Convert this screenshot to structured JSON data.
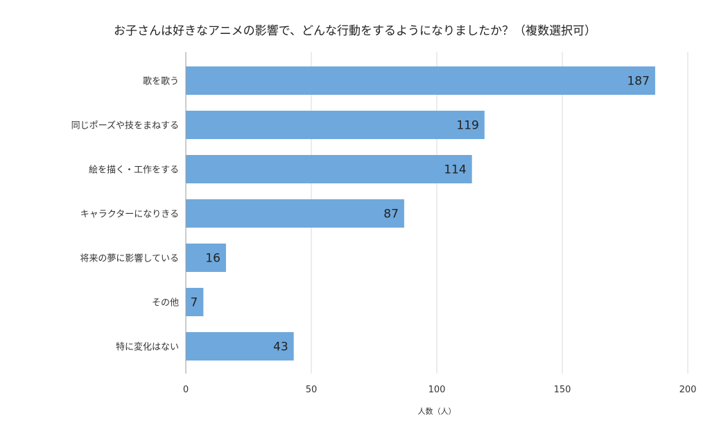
{
  "chart_data": {
    "type": "bar",
    "orientation": "horizontal",
    "title": "お子さんは好きなアニメの影響で、どんな行動をするようになりましたか？（複数選択可）",
    "xlabel": "人数（人）",
    "ylabel": "",
    "categories": [
      "歌を歌う",
      "同じポーズや技をまねする",
      "絵を描く・工作をする",
      "キャラクターになりきる",
      "将来の夢に影響している",
      "その他",
      "特に変化はない"
    ],
    "values": [
      187,
      119,
      114,
      87,
      16,
      7,
      43
    ],
    "xlim": [
      0,
      200
    ],
    "xticks": [
      0,
      50,
      100,
      150,
      200
    ],
    "grid": true,
    "legend": "none",
    "bar_color": "#6fa8dc"
  }
}
